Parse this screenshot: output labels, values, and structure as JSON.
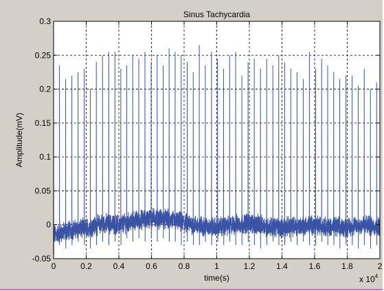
{
  "chart_data": {
    "type": "line",
    "title": "Sinus Tachycardia",
    "xlabel": "time(s)",
    "ylabel": "Amplitude(mV)",
    "x_multiplier_label": "x 10",
    "x_multiplier_exponent": "4",
    "xlim": [
      0,
      20000
    ],
    "ylim": [
      -0.05,
      0.3
    ],
    "x_ticks": [
      0,
      2000,
      4000,
      6000,
      8000,
      10000,
      12000,
      14000,
      16000,
      18000,
      20000
    ],
    "x_tick_labels": [
      "0",
      "0.2",
      "0.4",
      "0.6",
      "0.8",
      "1",
      "1.2",
      "1.4",
      "1.6",
      "1.8",
      "2"
    ],
    "y_ticks": [
      -0.05,
      0,
      0.05,
      0.1,
      0.15,
      0.2,
      0.25,
      0.3
    ],
    "y_tick_labels": [
      "-0.05",
      "0",
      "0.05",
      "0.1",
      "0.15",
      "0.2",
      "0.25",
      "0.3"
    ],
    "grid": true,
    "grid_style": "dashed",
    "line_color": "#3a53a4",
    "plot_background": "#ffffff",
    "figure_background": "#d4d0c8",
    "series": [
      {
        "r_peak_times": [
          0,
          360,
          740,
          1120,
          1500,
          1880,
          2250,
          2620,
          3000,
          3380,
          3760,
          4120,
          4480,
          4850,
          5220,
          5600,
          5980,
          6350,
          6720,
          7080,
          7450,
          7820,
          8190,
          8560,
          8930,
          9300,
          9680,
          10050,
          10420,
          10790,
          11160,
          11540,
          11920,
          12300,
          12680,
          13060,
          13440,
          13800,
          14160,
          14540,
          14920,
          15300,
          15680,
          16060,
          16430,
          16800,
          17170,
          17540,
          17920,
          18300,
          18670,
          19040,
          19420,
          19800
        ],
        "r_peak_values": [
          0.23,
          0.235,
          0.215,
          0.22,
          0.225,
          0.23,
          0.2,
          0.24,
          0.25,
          0.255,
          0.255,
          0.23,
          0.235,
          0.25,
          0.245,
          0.255,
          0.24,
          0.25,
          0.235,
          0.26,
          0.255,
          0.25,
          0.24,
          0.225,
          0.265,
          0.235,
          0.255,
          0.245,
          0.23,
          0.25,
          0.255,
          0.22,
          0.24,
          0.245,
          0.23,
          0.245,
          0.235,
          0.25,
          0.24,
          0.23,
          0.225,
          0.215,
          0.255,
          0.23,
          0.245,
          0.235,
          0.225,
          0.215,
          0.22,
          0.22,
          0.205,
          0.23,
          0.2,
          0.21
        ],
        "s_trough_values": [
          -0.045,
          -0.03,
          -0.035,
          -0.03,
          -0.025,
          -0.03,
          -0.035,
          -0.03,
          -0.025,
          -0.03,
          -0.025,
          -0.03,
          -0.02,
          -0.025,
          -0.02,
          -0.025,
          -0.02,
          -0.025,
          -0.02,
          -0.025,
          -0.025,
          -0.03,
          -0.025,
          -0.03,
          -0.03,
          -0.025,
          -0.03,
          -0.025,
          -0.03,
          -0.025,
          -0.03,
          -0.03,
          -0.025,
          -0.03,
          -0.035,
          -0.03,
          -0.025,
          -0.03,
          -0.03,
          -0.025,
          -0.03,
          -0.025,
          -0.03,
          -0.03,
          -0.025,
          -0.03,
          -0.03,
          -0.035,
          -0.03,
          -0.03,
          -0.035,
          -0.03,
          -0.035,
          -0.03
        ],
        "baseline_noise_amplitude": 0.012,
        "baseline_wander": [
          [
            0,
            -0.015
          ],
          [
            1000,
            -0.008
          ],
          [
            2000,
            -0.005
          ],
          [
            3000,
            0.002
          ],
          [
            4000,
            0.0
          ],
          [
            5000,
            0.006
          ],
          [
            6000,
            0.01
          ],
          [
            7000,
            0.008
          ],
          [
            8000,
            0.003
          ],
          [
            9000,
            -0.002
          ],
          [
            10000,
            -0.004
          ],
          [
            11000,
            0.0
          ],
          [
            12000,
            0.003
          ],
          [
            13000,
            -0.002
          ],
          [
            14000,
            -0.004
          ],
          [
            15000,
            -0.002
          ],
          [
            16000,
            0.0
          ],
          [
            17000,
            -0.003
          ],
          [
            18000,
            -0.004
          ],
          [
            19000,
            0.0
          ],
          [
            20000,
            -0.002
          ]
        ]
      }
    ]
  }
}
